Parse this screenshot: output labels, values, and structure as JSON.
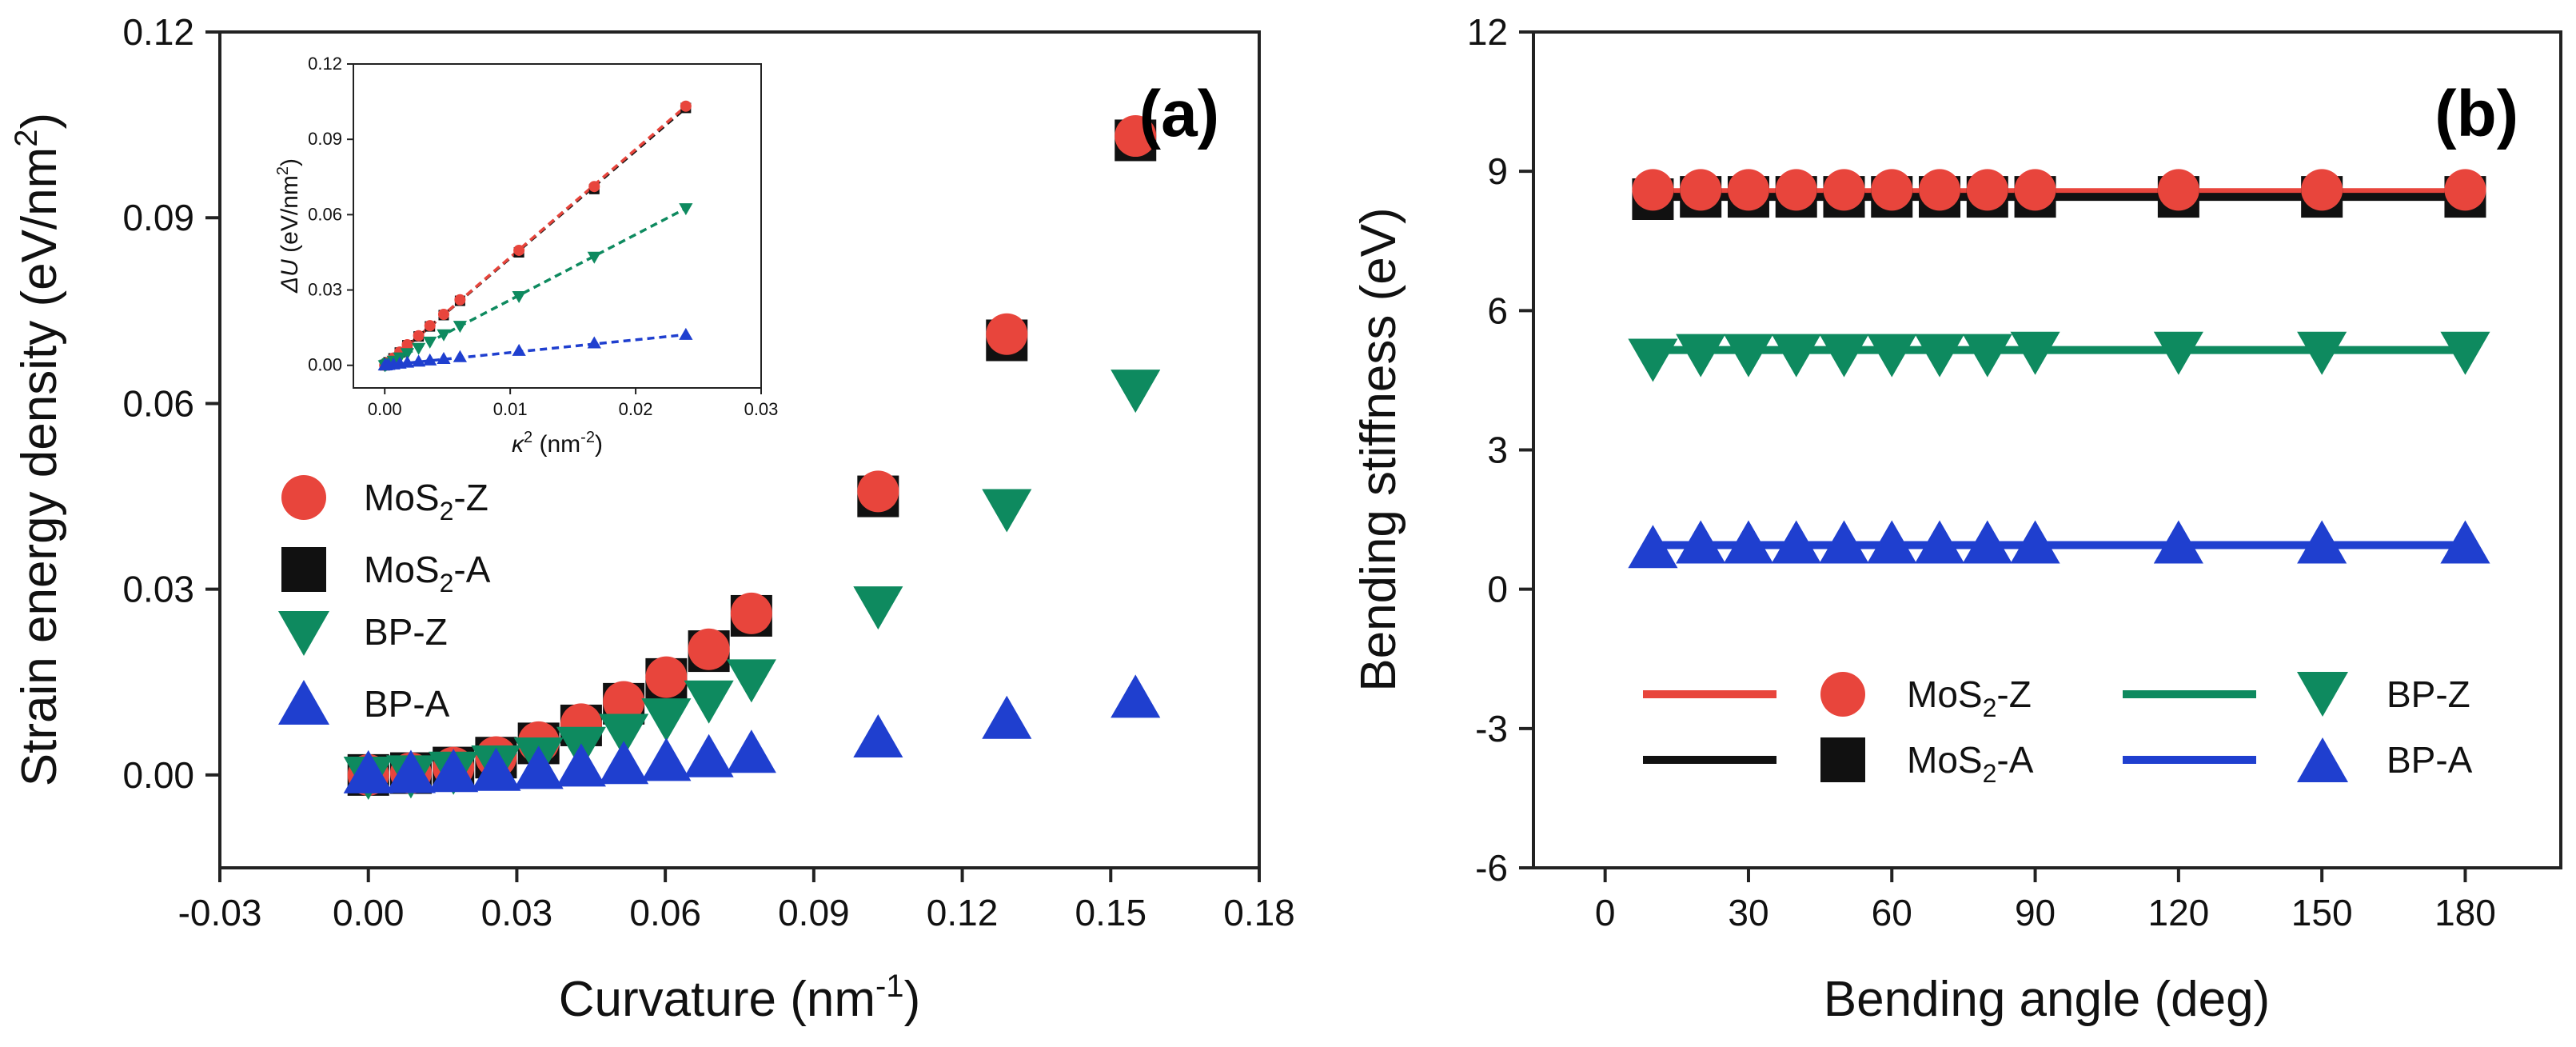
{
  "colors": {
    "red": "#e8453c",
    "black": "#111111",
    "green": "#0e8a5f",
    "blue": "#1f3fcf"
  },
  "chart_data": [
    {
      "id": "a",
      "type": "scatter",
      "panel_label": "(a)",
      "xlabel": "Curvature (nm",
      "xlabel_sup": "-1",
      "xlabel_end": ")",
      "ylabel": "Strain energy density (eV/nm",
      "ylabel_sup": "2",
      "ylabel_end": ")",
      "xlim": [
        -0.03,
        0.18
      ],
      "ylim": [
        -0.015,
        0.12
      ],
      "xticks": [
        "-0.03",
        "0.00",
        "0.03",
        "0.06",
        "0.09",
        "0.12",
        "0.15",
        "0.18"
      ],
      "yticks": [
        "0.00",
        "0.03",
        "0.06",
        "0.09",
        "0.12"
      ],
      "legend_position": "middle-left",
      "series": [
        {
          "name": "MoS2-Z",
          "label_main": "MoS",
          "label_sub": "2",
          "label_end": "-Z",
          "marker": "circle",
          "color": "#e8453c",
          "x": [
            0,
            0.0086,
            0.0172,
            0.0258,
            0.0344,
            0.043,
            0.0516,
            0.0602,
            0.0688,
            0.0774,
            0.103,
            0.129,
            0.155
          ],
          "y": [
            0,
            0.0003,
            0.0012,
            0.0029,
            0.0053,
            0.0082,
            0.0118,
            0.0158,
            0.0203,
            0.0261,
            0.0458,
            0.0712,
            0.1032
          ]
        },
        {
          "name": "MoS2-A",
          "label_main": "MoS",
          "label_sub": "2",
          "label_end": "-A",
          "marker": "square",
          "color": "#111111",
          "x": [
            0,
            0.0086,
            0.0172,
            0.0258,
            0.0344,
            0.043,
            0.0516,
            0.0602,
            0.0688,
            0.0774,
            0.103,
            0.129,
            0.155
          ],
          "y": [
            0,
            0.0003,
            0.0012,
            0.0028,
            0.0051,
            0.008,
            0.0115,
            0.0155,
            0.02,
            0.0257,
            0.045,
            0.0702,
            0.1025
          ]
        },
        {
          "name": "BP-Z",
          "label_main": "BP-Z",
          "marker": "triangle-down",
          "color": "#0e8a5f",
          "x": [
            0,
            0.0086,
            0.0172,
            0.0258,
            0.0344,
            0.043,
            0.0516,
            0.0602,
            0.0688,
            0.0774,
            0.103,
            0.129,
            0.155
          ],
          "y": [
            0,
            0.0002,
            0.0008,
            0.0018,
            0.0031,
            0.0048,
            0.0069,
            0.0094,
            0.0123,
            0.0157,
            0.0275,
            0.0432,
            0.0625
          ]
        },
        {
          "name": "BP-A",
          "label_main": "BP-A",
          "marker": "triangle-up",
          "color": "#1f3fcf",
          "x": [
            0,
            0.0086,
            0.0172,
            0.0258,
            0.0344,
            0.043,
            0.0516,
            0.0602,
            0.0688,
            0.0774,
            0.103,
            0.129,
            0.155
          ],
          "y": [
            0,
            5e-05,
            0.0002,
            0.0004,
            0.0007,
            0.0011,
            0.0015,
            0.002,
            0.0026,
            0.0033,
            0.0058,
            0.0088,
            0.0122
          ]
        }
      ]
    },
    {
      "id": "a-inset",
      "type": "scatter",
      "xlabel": "κ",
      "xlabel_sup": "2",
      "xlabel_end": " (nm",
      "xlabel_sup2": "-2",
      "xlabel_end2": ")",
      "ylabel": "ΔU",
      "ylabel_end": " (eV/nm",
      "ylabel_sup": "2",
      "ylabel_end2": ")",
      "xlim": [
        -0.0025,
        0.03
      ],
      "ylim": [
        -0.009,
        0.12
      ],
      "xticks": [
        "0.00",
        "0.01",
        "0.02",
        "0.03"
      ],
      "yticks": [
        "0.00",
        "0.03",
        "0.06",
        "0.09",
        "0.12"
      ],
      "fit_lines": "dashed",
      "series": [
        {
          "name": "MoS2-Z",
          "marker": "circle",
          "color": "#e8453c",
          "x": [
            0,
            0.0001,
            0.0003,
            0.0007,
            0.0012,
            0.0018,
            0.0027,
            0.0036,
            0.0047,
            0.006,
            0.0107,
            0.0167,
            0.024
          ],
          "y": [
            0,
            0.0003,
            0.0012,
            0.0029,
            0.0053,
            0.0082,
            0.0118,
            0.0158,
            0.0203,
            0.0261,
            0.0458,
            0.0712,
            0.1032
          ],
          "fit": [
            0,
            0.1032
          ]
        },
        {
          "name": "MoS2-A",
          "marker": "square",
          "color": "#111111",
          "x": [
            0,
            0.0001,
            0.0003,
            0.0007,
            0.0012,
            0.0018,
            0.0027,
            0.0036,
            0.0047,
            0.006,
            0.0107,
            0.0167,
            0.024
          ],
          "y": [
            0,
            0.0003,
            0.0012,
            0.0028,
            0.0051,
            0.008,
            0.0115,
            0.0155,
            0.02,
            0.0257,
            0.045,
            0.0702,
            0.1025
          ],
          "fit": [
            0,
            0.1025
          ]
        },
        {
          "name": "BP-Z",
          "marker": "triangle-down",
          "color": "#0e8a5f",
          "x": [
            0,
            0.0001,
            0.0003,
            0.0007,
            0.0012,
            0.0018,
            0.0027,
            0.0036,
            0.0047,
            0.006,
            0.0107,
            0.0167,
            0.024
          ],
          "y": [
            0,
            0.0002,
            0.0008,
            0.0018,
            0.0031,
            0.0048,
            0.0069,
            0.0094,
            0.0123,
            0.0157,
            0.0275,
            0.0432,
            0.0625
          ],
          "fit": [
            0,
            0.0625
          ]
        },
        {
          "name": "BP-A",
          "marker": "triangle-up",
          "color": "#1f3fcf",
          "x": [
            0,
            0.0001,
            0.0003,
            0.0007,
            0.0012,
            0.0018,
            0.0027,
            0.0036,
            0.0047,
            0.006,
            0.0107,
            0.0167,
            0.024
          ],
          "y": [
            0,
            5e-05,
            0.0002,
            0.0004,
            0.0007,
            0.0011,
            0.0015,
            0.002,
            0.0026,
            0.0033,
            0.0058,
            0.0088,
            0.0122
          ],
          "fit": [
            0,
            0.0122
          ]
        }
      ]
    },
    {
      "id": "b",
      "type": "scatter",
      "panel_label": "(b)",
      "xlabel": "Bending angle (deg)",
      "ylabel": "Bending stiffness (eV)",
      "xlim": [
        -15,
        200
      ],
      "ylim": [
        -6,
        12
      ],
      "xticks": [
        "0",
        "30",
        "60",
        "90",
        "120",
        "150",
        "180"
      ],
      "yticks": [
        "-6",
        "-3",
        "0",
        "3",
        "6",
        "9",
        "12"
      ],
      "legend_position": "bottom",
      "series": [
        {
          "name": "MoS2-Z",
          "label_main": "MoS",
          "label_sub": "2",
          "label_end": "-Z",
          "marker": "circle",
          "color": "#e8453c",
          "x": [
            10,
            20,
            30,
            40,
            50,
            60,
            70,
            80,
            90,
            120,
            150,
            180
          ],
          "y": [
            8.6,
            8.6,
            8.6,
            8.6,
            8.6,
            8.6,
            8.6,
            8.6,
            8.6,
            8.6,
            8.6,
            8.6
          ],
          "line": 8.55
        },
        {
          "name": "MoS2-A",
          "label_main": "MoS",
          "label_sub": "2",
          "label_end": "-A",
          "marker": "square",
          "color": "#111111",
          "x": [
            10,
            20,
            30,
            40,
            50,
            60,
            70,
            80,
            90,
            120,
            150,
            180
          ],
          "y": [
            8.4,
            8.45,
            8.45,
            8.45,
            8.45,
            8.45,
            8.45,
            8.45,
            8.45,
            8.45,
            8.45,
            8.45
          ],
          "line": 8.45
        },
        {
          "name": "BP-Z",
          "label_main": "BP-Z",
          "marker": "triangle-down",
          "color": "#0e8a5f",
          "x": [
            10,
            20,
            30,
            40,
            50,
            60,
            70,
            80,
            90,
            120,
            150,
            180
          ],
          "y": [
            5.0,
            5.1,
            5.1,
            5.1,
            5.1,
            5.1,
            5.1,
            5.1,
            5.15,
            5.15,
            5.15,
            5.15
          ],
          "line": 5.15
        },
        {
          "name": "BP-A",
          "label_main": "BP-A",
          "marker": "triangle-up",
          "color": "#1f3fcf",
          "x": [
            10,
            20,
            30,
            40,
            50,
            60,
            70,
            80,
            90,
            120,
            150,
            180
          ],
          "y": [
            0.85,
            0.95,
            0.95,
            0.95,
            0.95,
            0.95,
            0.95,
            0.95,
            0.95,
            0.95,
            0.95,
            0.95
          ],
          "line": 0.95
        }
      ]
    }
  ]
}
